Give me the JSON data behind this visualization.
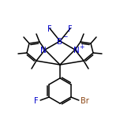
{
  "bg_color": "#ffffff",
  "bond_color": "#000000",
  "N_color": "#0000cc",
  "B_color": "#0000cc",
  "F_color": "#0000cc",
  "Br_color": "#8B4513",
  "line_width": 1.1,
  "figsize": [
    1.52,
    1.52
  ],
  "dpi": 100,
  "xlim": [
    0,
    152
  ],
  "ylim": [
    0,
    152
  ]
}
